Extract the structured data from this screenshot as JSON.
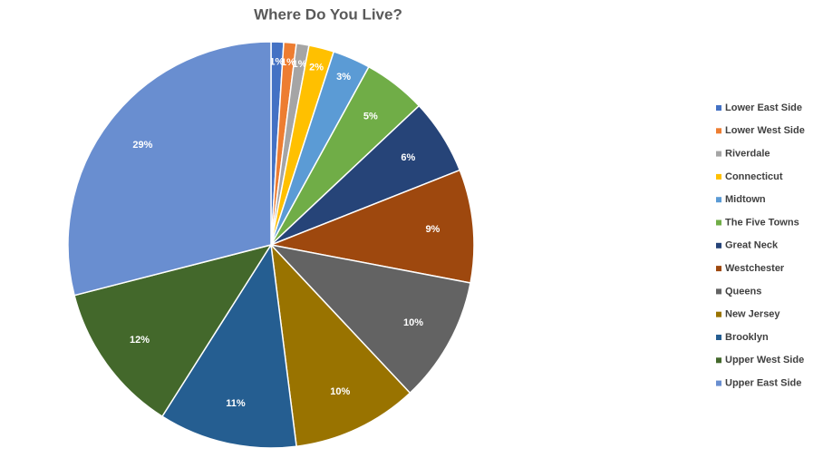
{
  "chart_data": {
    "type": "pie",
    "title": "Where Do You Live?",
    "categories": [
      "Lower East Side",
      "Lower West Side",
      "Riverdale",
      "Connecticut",
      "Midtown",
      "The Five Towns",
      "Great Neck",
      "Westchester",
      "Queens",
      "New Jersey",
      "Brooklyn",
      "Upper West Side",
      "Upper East Side"
    ],
    "values": [
      1,
      1,
      1,
      2,
      3,
      5,
      6,
      9,
      10,
      10,
      11,
      12,
      29
    ],
    "value_labels": [
      "1%",
      "1%",
      "1%",
      "2%",
      "3%",
      "5%",
      "6%",
      "9%",
      "10%",
      "10%",
      "11%",
      "12%",
      "29%"
    ],
    "colors": [
      "#4472c4",
      "#ed7d31",
      "#a5a5a5",
      "#ffc000",
      "#5b9bd5",
      "#70ad47",
      "#264478",
      "#9e480e",
      "#636363",
      "#997300",
      "#255e91",
      "#43682b",
      "#698ed0"
    ],
    "legend": "right"
  }
}
